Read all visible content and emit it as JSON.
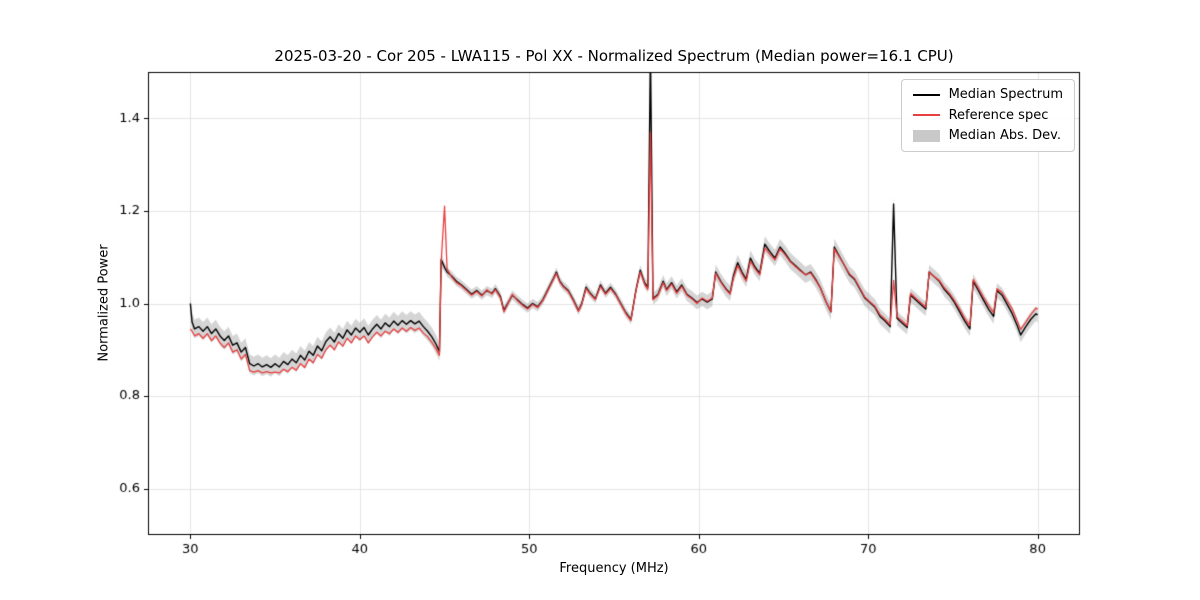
{
  "figure": {
    "title": "2025-03-20 - Cor 205 - LWA115 - Pol XX - Normalized Spectrum (Median power=16.1 CPU)",
    "xlabel": "Frequency (MHz)",
    "ylabel": "Normalized Power"
  },
  "legend": {
    "position": "upper right",
    "entries": [
      {
        "label": "Median Spectrum",
        "type": "line",
        "color": "#000000"
      },
      {
        "label": "Reference spec",
        "type": "line",
        "color": "#e84040"
      },
      {
        "label": "Median Abs. Dev.",
        "type": "patch",
        "color": "#c9c9c9"
      }
    ]
  },
  "chart_data": {
    "type": "line",
    "title": "2025-03-20 - Cor 205 - LWA115 - Pol XX - Normalized Spectrum (Median power=16.1 CPU)",
    "xlabel": "Frequency (MHz)",
    "ylabel": "Normalized Power",
    "xlim": [
      27.5,
      82.5
    ],
    "ylim": [
      0.5,
      1.5
    ],
    "xticks": [
      30,
      40,
      50,
      60,
      70,
      80
    ],
    "xtick_labels": [
      "30",
      "40",
      "50",
      "60",
      "70",
      "80"
    ],
    "yticks": [
      0.6,
      0.8,
      1.0,
      1.2,
      1.4
    ],
    "ytick_labels": [
      "0.6",
      "0.8",
      "1.0",
      "1.2",
      "1.4"
    ],
    "grid": true,
    "legend_position": "upper right",
    "median_color": "#000000",
    "reference_color": "#e84040",
    "band_color": "#969696",
    "band_alpha": 0.4,
    "notable_features": [
      {
        "freq_mhz": 45.0,
        "desc": "reference spike to ~1.21"
      },
      {
        "freq_mhz": 57.15,
        "desc": "strong RFI spike, median clipped above 1.5, reference ~1.37"
      },
      {
        "freq_mhz": 71.5,
        "desc": "median spike to ~1.22"
      }
    ],
    "points_format": [
      "freq_mhz",
      "median",
      "reference"
    ],
    "mad_halfwidth_points": [
      [
        30,
        0.02
      ],
      [
        44.7,
        0.02
      ],
      [
        45.0,
        0.01
      ],
      [
        56.0,
        0.01
      ],
      [
        57.5,
        0.013
      ],
      [
        62.0,
        0.017
      ],
      [
        70.0,
        0.018
      ],
      [
        72.0,
        0.015
      ],
      [
        80.0,
        0.016
      ]
    ],
    "points": [
      [
        30.0,
        1.0,
        0.945
      ],
      [
        30.1,
        0.96,
        0.94
      ],
      [
        30.25,
        0.945,
        0.93
      ],
      [
        30.5,
        0.95,
        0.935
      ],
      [
        30.75,
        0.94,
        0.925
      ],
      [
        31.0,
        0.95,
        0.935
      ],
      [
        31.25,
        0.935,
        0.92
      ],
      [
        31.5,
        0.945,
        0.93
      ],
      [
        31.75,
        0.93,
        0.915
      ],
      [
        32.0,
        0.92,
        0.905
      ],
      [
        32.25,
        0.93,
        0.915
      ],
      [
        32.5,
        0.91,
        0.895
      ],
      [
        32.75,
        0.915,
        0.9
      ],
      [
        33.0,
        0.895,
        0.88
      ],
      [
        33.25,
        0.905,
        0.89
      ],
      [
        33.5,
        0.87,
        0.855
      ],
      [
        33.75,
        0.865,
        0.852
      ],
      [
        34.0,
        0.87,
        0.855
      ],
      [
        34.25,
        0.863,
        0.85
      ],
      [
        34.5,
        0.868,
        0.853
      ],
      [
        34.75,
        0.862,
        0.85
      ],
      [
        35.0,
        0.87,
        0.852
      ],
      [
        35.25,
        0.863,
        0.85
      ],
      [
        35.5,
        0.875,
        0.858
      ],
      [
        35.75,
        0.868,
        0.853
      ],
      [
        36.0,
        0.88,
        0.862
      ],
      [
        36.25,
        0.872,
        0.856
      ],
      [
        36.5,
        0.888,
        0.87
      ],
      [
        36.75,
        0.878,
        0.862
      ],
      [
        37.0,
        0.897,
        0.88
      ],
      [
        37.25,
        0.888,
        0.872
      ],
      [
        37.5,
        0.908,
        0.89
      ],
      [
        37.75,
        0.898,
        0.882
      ],
      [
        38.0,
        0.918,
        0.9
      ],
      [
        38.25,
        0.928,
        0.91
      ],
      [
        38.5,
        0.917,
        0.9
      ],
      [
        38.75,
        0.935,
        0.917
      ],
      [
        39.0,
        0.925,
        0.908
      ],
      [
        39.25,
        0.943,
        0.925
      ],
      [
        39.5,
        0.932,
        0.915
      ],
      [
        39.75,
        0.947,
        0.93
      ],
      [
        40.0,
        0.938,
        0.922
      ],
      [
        40.25,
        0.948,
        0.93
      ],
      [
        40.5,
        0.932,
        0.915
      ],
      [
        40.75,
        0.945,
        0.928
      ],
      [
        41.0,
        0.955,
        0.938
      ],
      [
        41.25,
        0.945,
        0.93
      ],
      [
        41.5,
        0.958,
        0.94
      ],
      [
        41.75,
        0.95,
        0.935
      ],
      [
        42.0,
        0.962,
        0.945
      ],
      [
        42.25,
        0.953,
        0.938
      ],
      [
        42.5,
        0.963,
        0.947
      ],
      [
        42.75,
        0.955,
        0.94
      ],
      [
        43.0,
        0.963,
        0.948
      ],
      [
        43.25,
        0.956,
        0.942
      ],
      [
        43.5,
        0.962,
        0.947
      ],
      [
        43.75,
        0.95,
        0.936
      ],
      [
        44.0,
        0.94,
        0.928
      ],
      [
        44.25,
        0.928,
        0.916
      ],
      [
        44.5,
        0.912,
        0.902
      ],
      [
        44.7,
        0.896,
        0.888
      ],
      [
        44.8,
        1.095,
        1.09
      ],
      [
        45.0,
        1.078,
        1.21
      ],
      [
        45.15,
        1.068,
        1.075
      ],
      [
        45.4,
        1.06,
        1.058
      ],
      [
        45.7,
        1.048,
        1.045
      ],
      [
        46.0,
        1.04,
        1.038
      ],
      [
        46.3,
        1.03,
        1.028
      ],
      [
        46.6,
        1.02,
        1.018
      ],
      [
        46.9,
        1.028,
        1.026
      ],
      [
        47.2,
        1.018,
        1.016
      ],
      [
        47.5,
        1.028,
        1.03
      ],
      [
        47.8,
        1.022,
        1.02
      ],
      [
        48.0,
        1.032,
        1.03
      ],
      [
        48.3,
        1.015,
        1.012
      ],
      [
        48.5,
        0.985,
        0.982
      ],
      [
        48.7,
        0.998,
        0.996
      ],
      [
        49.0,
        1.018,
        1.02
      ],
      [
        49.3,
        1.008,
        1.006
      ],
      [
        49.6,
        0.998,
        0.996
      ],
      [
        49.9,
        0.99,
        0.988
      ],
      [
        50.2,
        1.0,
        0.998
      ],
      [
        50.5,
        0.993,
        0.991
      ],
      [
        50.8,
        1.008,
        1.006
      ],
      [
        51.1,
        1.03,
        1.028
      ],
      [
        51.4,
        1.052,
        1.05
      ],
      [
        51.6,
        1.068,
        1.065
      ],
      [
        51.8,
        1.048,
        1.046
      ],
      [
        52.0,
        1.038,
        1.036
      ],
      [
        52.3,
        1.028,
        1.026
      ],
      [
        52.6,
        1.008,
        1.006
      ],
      [
        52.9,
        0.985,
        0.983
      ],
      [
        53.1,
        1.0,
        0.998
      ],
      [
        53.35,
        1.035,
        1.032
      ],
      [
        53.6,
        1.022,
        1.02
      ],
      [
        53.9,
        1.01,
        1.008
      ],
      [
        54.2,
        1.04,
        1.037
      ],
      [
        54.5,
        1.022,
        1.02
      ],
      [
        54.8,
        1.035,
        1.032
      ],
      [
        55.1,
        1.02,
        1.018
      ],
      [
        55.4,
        1.0,
        0.998
      ],
      [
        55.7,
        0.98,
        0.978
      ],
      [
        56.0,
        0.965,
        0.963
      ],
      [
        56.3,
        1.03,
        1.028
      ],
      [
        56.55,
        1.072,
        1.068
      ],
      [
        56.8,
        1.045,
        1.042
      ],
      [
        57.0,
        1.035,
        1.03
      ],
      [
        57.15,
        1.55,
        1.37
      ],
      [
        57.3,
        1.01,
        1.008
      ],
      [
        57.6,
        1.02,
        1.018
      ],
      [
        57.9,
        1.048,
        1.045
      ],
      [
        58.1,
        1.03,
        1.028
      ],
      [
        58.4,
        1.045,
        1.042
      ],
      [
        58.7,
        1.025,
        1.022
      ],
      [
        59.0,
        1.04,
        1.037
      ],
      [
        59.3,
        1.02,
        1.018
      ],
      [
        59.6,
        1.012,
        1.01
      ],
      [
        59.9,
        1.002,
        1.0
      ],
      [
        60.2,
        1.01,
        1.012
      ],
      [
        60.5,
        1.003,
        1.005
      ],
      [
        60.8,
        1.01,
        1.012
      ],
      [
        61.0,
        1.068,
        1.065
      ],
      [
        61.3,
        1.048,
        1.046
      ],
      [
        61.6,
        1.032,
        1.03
      ],
      [
        61.85,
        1.022,
        1.02
      ],
      [
        62.05,
        1.06,
        1.055
      ],
      [
        62.3,
        1.088,
        1.082
      ],
      [
        62.55,
        1.068,
        1.064
      ],
      [
        62.8,
        1.052,
        1.048
      ],
      [
        63.05,
        1.098,
        1.092
      ],
      [
        63.3,
        1.08,
        1.076
      ],
      [
        63.6,
        1.065,
        1.062
      ],
      [
        63.9,
        1.128,
        1.12
      ],
      [
        64.2,
        1.112,
        1.106
      ],
      [
        64.5,
        1.098,
        1.094
      ],
      [
        64.8,
        1.122,
        1.118
      ],
      [
        65.1,
        1.108,
        1.105
      ],
      [
        65.4,
        1.092,
        1.09
      ],
      [
        65.7,
        1.082,
        1.08
      ],
      [
        66.0,
        1.072,
        1.07
      ],
      [
        66.3,
        1.062,
        1.062
      ],
      [
        66.6,
        1.068,
        1.066
      ],
      [
        66.9,
        1.052,
        1.05
      ],
      [
        67.2,
        1.032,
        1.032
      ],
      [
        67.5,
        1.005,
        1.005
      ],
      [
        67.8,
        0.982,
        0.982
      ],
      [
        68.0,
        1.122,
        1.118
      ],
      [
        68.3,
        1.102,
        1.1
      ],
      [
        68.6,
        1.082,
        1.082
      ],
      [
        68.9,
        1.062,
        1.064
      ],
      [
        69.2,
        1.052,
        1.054
      ],
      [
        69.5,
        1.032,
        1.034
      ],
      [
        69.8,
        1.012,
        1.014
      ],
      [
        70.1,
        1.002,
        1.004
      ],
      [
        70.4,
        0.992,
        0.994
      ],
      [
        70.7,
        0.972,
        0.976
      ],
      [
        71.0,
        0.962,
        0.966
      ],
      [
        71.3,
        0.95,
        0.954
      ],
      [
        71.5,
        1.215,
        1.05
      ],
      [
        71.7,
        0.968,
        0.972
      ],
      [
        72.0,
        0.958,
        0.962
      ],
      [
        72.3,
        0.948,
        0.952
      ],
      [
        72.5,
        1.018,
        1.022
      ],
      [
        72.8,
        1.008,
        1.012
      ],
      [
        73.1,
        0.998,
        1.002
      ],
      [
        73.4,
        0.988,
        0.992
      ],
      [
        73.6,
        1.068,
        1.068
      ],
      [
        73.9,
        1.058,
        1.058
      ],
      [
        74.2,
        1.048,
        1.05
      ],
      [
        74.5,
        1.03,
        1.034
      ],
      [
        74.8,
        1.018,
        1.022
      ],
      [
        75.1,
        1.002,
        1.006
      ],
      [
        75.4,
        0.982,
        0.988
      ],
      [
        75.7,
        0.962,
        0.968
      ],
      [
        76.0,
        0.945,
        0.952
      ],
      [
        76.2,
        1.048,
        1.052
      ],
      [
        76.5,
        1.028,
        1.034
      ],
      [
        76.8,
        1.008,
        1.014
      ],
      [
        77.1,
        0.988,
        0.996
      ],
      [
        77.4,
        0.972,
        0.98
      ],
      [
        77.6,
        1.028,
        1.032
      ],
      [
        77.9,
        1.018,
        1.024
      ],
      [
        78.2,
        0.998,
        1.006
      ],
      [
        78.5,
        0.978,
        0.988
      ],
      [
        78.8,
        0.952,
        0.962
      ],
      [
        79.0,
        0.932,
        0.944
      ],
      [
        79.3,
        0.95,
        0.96
      ],
      [
        79.6,
        0.966,
        0.976
      ],
      [
        79.9,
        0.978,
        0.99
      ],
      [
        80.0,
        0.975,
        0.988
      ]
    ]
  }
}
